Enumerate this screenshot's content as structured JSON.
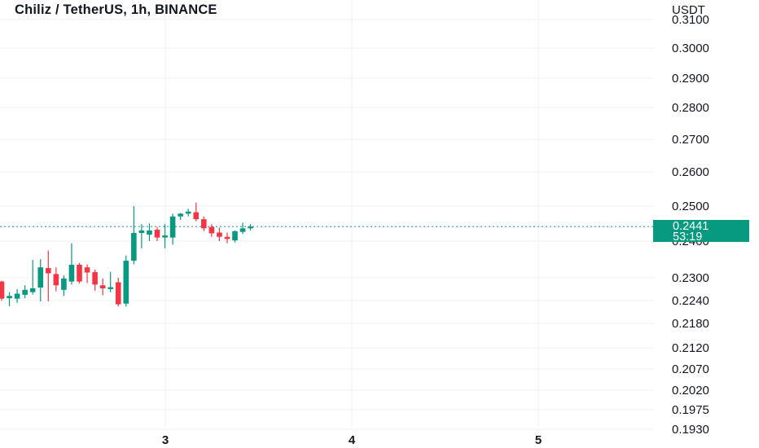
{
  "title": "Chiliz / TetherUS, 1h, BINANCE",
  "currency": "USDT",
  "last_price": "0.2441",
  "countdown": "53:19",
  "colors": {
    "up": "#089981",
    "down": "#F23645",
    "grid": "#EEF0F3",
    "last_price_line": "#089981"
  },
  "chart_data": {
    "type": "candlestick",
    "x_ticks": [
      "3",
      "4",
      "5"
    ],
    "y_ticks": [
      "0.3100",
      "0.3000",
      "0.2900",
      "0.2800",
      "0.2700",
      "0.2600",
      "0.2500",
      "0.2400",
      "0.2300",
      "0.2240",
      "0.2180",
      "0.2120",
      "0.2070",
      "0.2020",
      "0.1975",
      "0.1930"
    ],
    "y_scale": "log",
    "grid": true,
    "candles": [
      {
        "o": 0.229,
        "h": 0.2292,
        "l": 0.224,
        "c": 0.2245
      },
      {
        "o": 0.2246,
        "h": 0.2262,
        "l": 0.2225,
        "c": 0.2252
      },
      {
        "o": 0.2245,
        "h": 0.227,
        "l": 0.2234,
        "c": 0.2258
      },
      {
        "o": 0.2255,
        "h": 0.228,
        "l": 0.2246,
        "c": 0.2268
      },
      {
        "o": 0.2262,
        "h": 0.2348,
        "l": 0.2256,
        "c": 0.2272
      },
      {
        "o": 0.2274,
        "h": 0.235,
        "l": 0.2238,
        "c": 0.2328
      },
      {
        "o": 0.2326,
        "h": 0.2374,
        "l": 0.2238,
        "c": 0.2312
      },
      {
        "o": 0.231,
        "h": 0.2328,
        "l": 0.2264,
        "c": 0.228
      },
      {
        "o": 0.2268,
        "h": 0.2306,
        "l": 0.2252,
        "c": 0.2298
      },
      {
        "o": 0.229,
        "h": 0.2394,
        "l": 0.2282,
        "c": 0.2335
      },
      {
        "o": 0.2335,
        "h": 0.234,
        "l": 0.2285,
        "c": 0.229
      },
      {
        "o": 0.2328,
        "h": 0.2336,
        "l": 0.2286,
        "c": 0.2314
      },
      {
        "o": 0.2315,
        "h": 0.2322,
        "l": 0.2266,
        "c": 0.2282
      },
      {
        "o": 0.228,
        "h": 0.2298,
        "l": 0.2254,
        "c": 0.2272
      },
      {
        "o": 0.227,
        "h": 0.2316,
        "l": 0.2262,
        "c": 0.2275
      },
      {
        "o": 0.2288,
        "h": 0.23,
        "l": 0.2224,
        "c": 0.223
      },
      {
        "o": 0.2232,
        "h": 0.236,
        "l": 0.2224,
        "c": 0.2346
      },
      {
        "o": 0.2346,
        "h": 0.25,
        "l": 0.2336,
        "c": 0.2423
      },
      {
        "o": 0.2423,
        "h": 0.2448,
        "l": 0.238,
        "c": 0.243
      },
      {
        "o": 0.2418,
        "h": 0.245,
        "l": 0.24,
        "c": 0.243
      },
      {
        "o": 0.2432,
        "h": 0.244,
        "l": 0.24,
        "c": 0.241
      },
      {
        "o": 0.241,
        "h": 0.2448,
        "l": 0.238,
        "c": 0.2416
      },
      {
        "o": 0.241,
        "h": 0.2478,
        "l": 0.239,
        "c": 0.247
      },
      {
        "o": 0.247,
        "h": 0.248,
        "l": 0.246,
        "c": 0.2478
      },
      {
        "o": 0.2478,
        "h": 0.2492,
        "l": 0.247,
        "c": 0.2484
      },
      {
        "o": 0.2482,
        "h": 0.251,
        "l": 0.2456,
        "c": 0.2462
      },
      {
        "o": 0.2462,
        "h": 0.247,
        "l": 0.2428,
        "c": 0.2436
      },
      {
        "o": 0.244,
        "h": 0.2448,
        "l": 0.2412,
        "c": 0.2422
      },
      {
        "o": 0.2424,
        "h": 0.2438,
        "l": 0.24,
        "c": 0.2412
      },
      {
        "o": 0.2412,
        "h": 0.2424,
        "l": 0.2394,
        "c": 0.2406
      },
      {
        "o": 0.2402,
        "h": 0.243,
        "l": 0.2396,
        "c": 0.2428
      },
      {
        "o": 0.2426,
        "h": 0.2452,
        "l": 0.242,
        "c": 0.2436
      },
      {
        "o": 0.2436,
        "h": 0.2448,
        "l": 0.243,
        "c": 0.2441
      }
    ]
  }
}
